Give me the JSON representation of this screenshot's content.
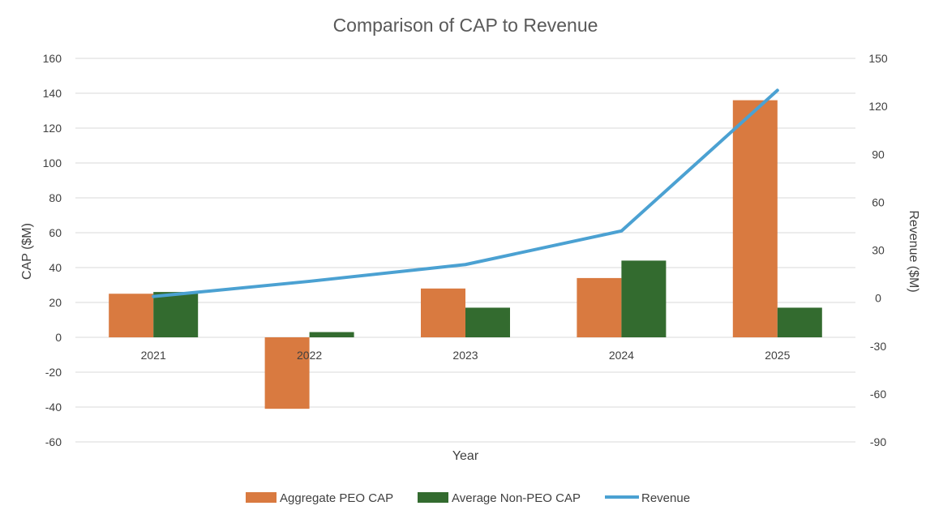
{
  "chart_data": {
    "type": "bar",
    "title": "Comparison of CAP to Revenue",
    "xlabel": "Year",
    "ylabel": "CAP ($M)",
    "y2label": "Revenue ($M)",
    "categories": [
      "2021",
      "2022",
      "2023",
      "2024",
      "2025"
    ],
    "ylim": [
      -60,
      160
    ],
    "yticks": [
      160,
      140,
      120,
      100,
      80,
      60,
      40,
      20,
      0,
      -20,
      -40,
      -60
    ],
    "y2lim": [
      -90,
      150
    ],
    "y2ticks": [
      150,
      120,
      90,
      60,
      30,
      0,
      -30,
      -60,
      -90
    ],
    "grid": true,
    "legend_position": "bottom",
    "series": [
      {
        "name": "Aggregate PEO CAP",
        "type": "bar",
        "axis": "left",
        "color": "#d97a40",
        "values": [
          25,
          -41,
          28,
          34,
          136
        ]
      },
      {
        "name": "Average Non-PEO CAP",
        "type": "bar",
        "axis": "left",
        "color": "#336b2f",
        "values": [
          26,
          3,
          17,
          44,
          17
        ]
      },
      {
        "name": "Revenue",
        "type": "line",
        "axis": "right",
        "color": "#4ba1d2",
        "values": [
          1,
          10.5,
          21,
          42,
          130
        ]
      }
    ]
  }
}
